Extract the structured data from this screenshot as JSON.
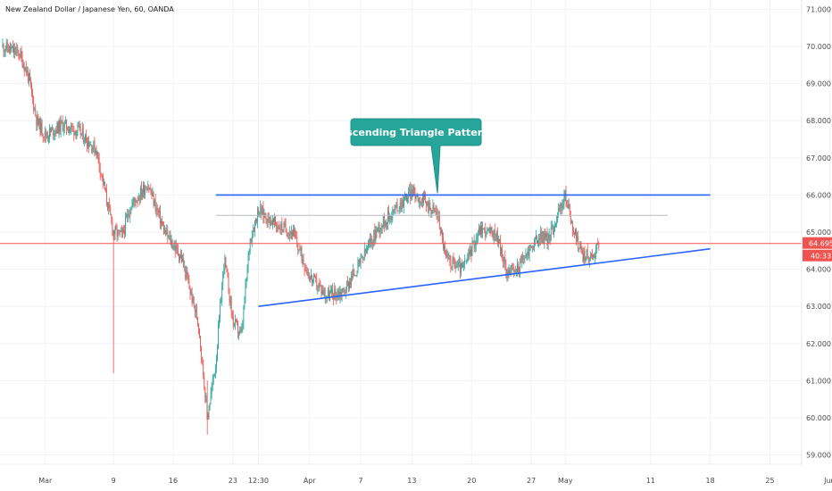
{
  "chart_data": {
    "type": "candlestick",
    "title": "New Zealand Dollar / Japanese Yen, 60, OANDA",
    "ylim": [
      58.75,
      71.25
    ],
    "y_ticks": [
      "59.000",
      "60.000",
      "61.000",
      "62.000",
      "63.000",
      "64.000",
      "65.000",
      "66.000",
      "67.000",
      "68.000",
      "69.000",
      "70.000",
      "71.000"
    ],
    "x_ticks": [
      "Mar",
      "9",
      "16",
      "23",
      "12:30",
      "Apr",
      "7",
      "13",
      "20",
      "27",
      "May",
      "11",
      "18",
      "25",
      "Jun"
    ],
    "grid": true,
    "colors": {
      "up": "#26a69a",
      "down": "#ef5350",
      "line": "#2962ff",
      "price_line": "#ef5350",
      "callout": "#26a69a"
    },
    "price": {
      "last": "64.695",
      "countdown": "40:33"
    },
    "price_path": [
      {
        "t": "Feb 24",
        "v": 70.0
      },
      {
        "t": "Feb 26",
        "v": 69.8
      },
      {
        "t": "Feb 27",
        "v": 69.2
      },
      {
        "t": "Feb 28",
        "v": 68.0
      },
      {
        "t": "Mar 1",
        "v": 67.6
      },
      {
        "t": "Mar 3",
        "v": 67.9
      },
      {
        "t": "Mar 5",
        "v": 67.7
      },
      {
        "t": "Mar 7",
        "v": 67.2
      },
      {
        "t": "Mar 9",
        "v": 65.0
      },
      {
        "t": "Mar 10",
        "v": 64.9
      },
      {
        "t": "Mar 11",
        "v": 65.7
      },
      {
        "t": "Mar 13",
        "v": 66.3
      },
      {
        "t": "Mar 15",
        "v": 65.0
      },
      {
        "t": "Mar 17",
        "v": 64.3
      },
      {
        "t": "Mar 19",
        "v": 62.5
      },
      {
        "t": "Mar 20",
        "v": 60.0
      },
      {
        "t": "Mar 21",
        "v": 61.5
      },
      {
        "t": "Mar 22",
        "v": 64.3
      },
      {
        "t": "Mar 23",
        "v": 62.6
      },
      {
        "t": "Mar 24",
        "v": 62.2
      },
      {
        "t": "Mar 25",
        "v": 64.8
      },
      {
        "t": "Mar 26",
        "v": 65.6
      },
      {
        "t": "Mar 28",
        "v": 65.2
      },
      {
        "t": "Mar 30",
        "v": 65.0
      },
      {
        "t": "Apr 1",
        "v": 63.8
      },
      {
        "t": "Apr 3",
        "v": 63.3
      },
      {
        "t": "Apr 5",
        "v": 63.4
      },
      {
        "t": "Apr 7",
        "v": 64.2
      },
      {
        "t": "Apr 9",
        "v": 65.1
      },
      {
        "t": "Apr 11",
        "v": 65.6
      },
      {
        "t": "Apr 13",
        "v": 66.1
      },
      {
        "t": "Apr 14",
        "v": 65.9
      },
      {
        "t": "Apr 16",
        "v": 65.5
      },
      {
        "t": "Apr 17",
        "v": 64.3
      },
      {
        "t": "Apr 19",
        "v": 64.0
      },
      {
        "t": "Apr 21",
        "v": 65.1
      },
      {
        "t": "Apr 23",
        "v": 64.9
      },
      {
        "t": "Apr 24",
        "v": 64.0
      },
      {
        "t": "Apr 25",
        "v": 63.9
      },
      {
        "t": "Apr 27",
        "v": 64.6
      },
      {
        "t": "Apr 28",
        "v": 64.9
      },
      {
        "t": "Apr 29",
        "v": 64.8
      },
      {
        "t": "Apr 30",
        "v": 65.4
      },
      {
        "t": "May 1",
        "v": 66.0
      },
      {
        "t": "May 2",
        "v": 65.0
      },
      {
        "t": "May 3",
        "v": 64.4
      },
      {
        "t": "May 4",
        "v": 64.3
      },
      {
        "t": "May 5",
        "v": 64.7
      }
    ],
    "annotations": {
      "callout_text": "Ascending Triangle Pattern.",
      "resistance": {
        "from": "Mar 21",
        "to": "May 18",
        "value": 66.0
      },
      "inner_line": {
        "from": "Mar 21",
        "to": "May 13",
        "value": 65.45
      },
      "support": {
        "from": "Mar 26",
        "to": "May 18",
        "v_from": 63.0,
        "v_to": 64.55
      }
    }
  }
}
